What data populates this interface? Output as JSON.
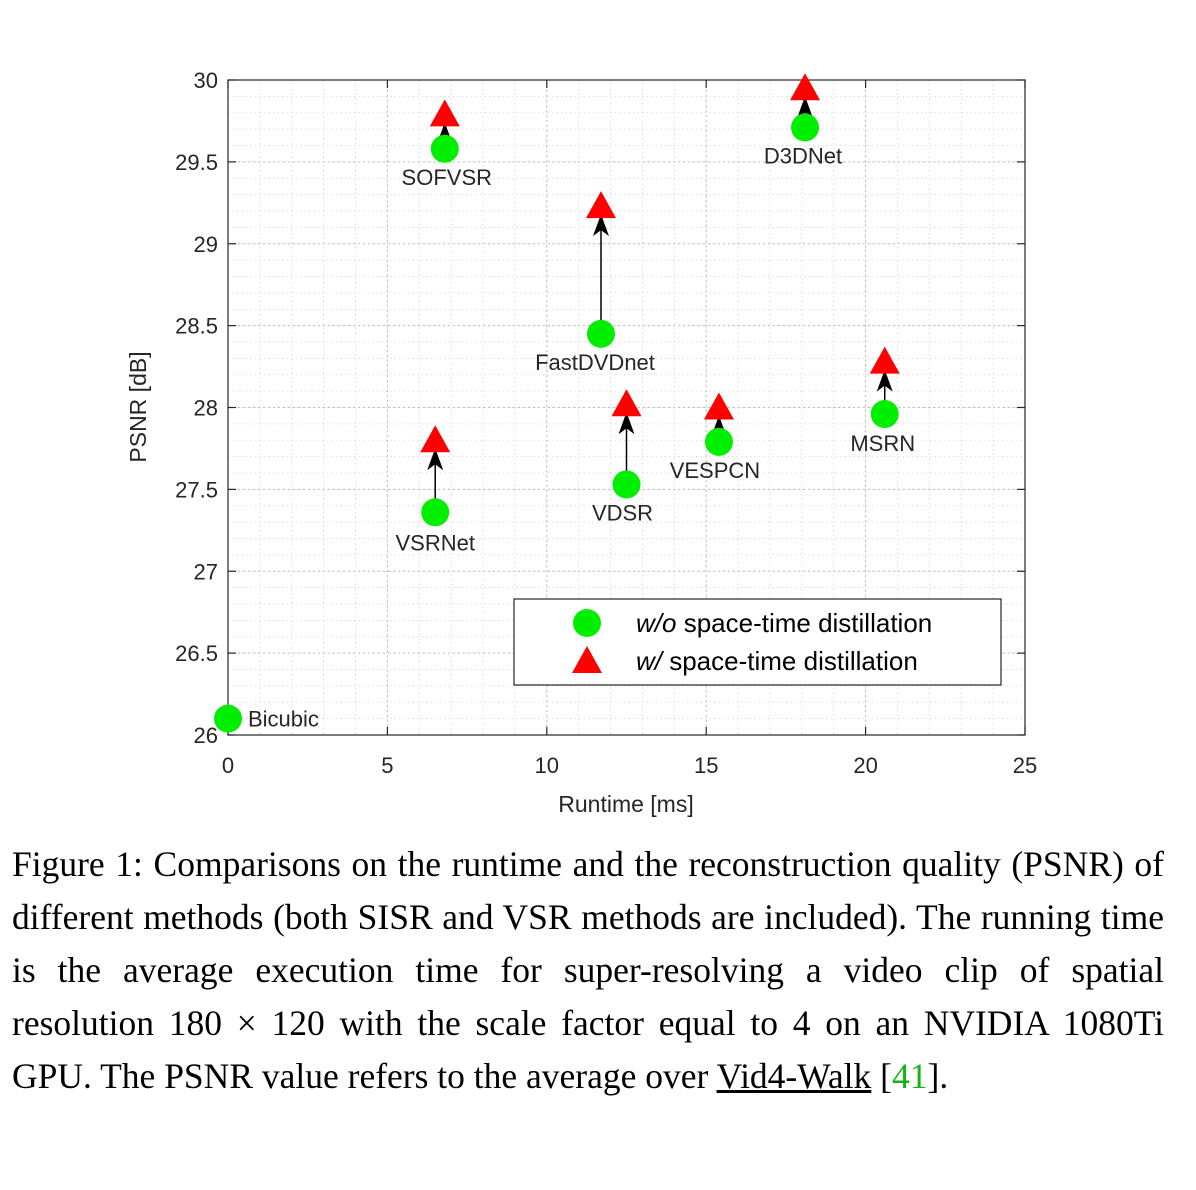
{
  "chart_data": {
    "type": "scatter",
    "xlabel": "Runtime [ms]",
    "ylabel": "PSNR [dB]",
    "xlim": [
      0,
      25
    ],
    "ylim": [
      26,
      30
    ],
    "xticks": [
      0,
      5,
      10,
      15,
      20,
      25
    ],
    "yticks": [
      26,
      26.5,
      27,
      27.5,
      28,
      28.5,
      29,
      29.5,
      30
    ],
    "grid": "major and minor, dotted",
    "legend_placement": "lower-right",
    "legend": [
      {
        "marker": "circle",
        "color": "#00ee00",
        "italic": "w/o",
        "text": "space-time distillation"
      },
      {
        "marker": "triangle",
        "color": "#ff0000",
        "italic": "w/",
        "text": "space-time distillation"
      }
    ],
    "series": [
      {
        "key": "without",
        "marker": "circle",
        "color": "#00ee00",
        "points": [
          {
            "label": "Bicubic",
            "x": 0.0,
            "y": 26.1
          },
          {
            "label": "VSRNet",
            "x": 6.5,
            "y": 27.36
          },
          {
            "label": "SOFVSR",
            "x": 6.8,
            "y": 29.58
          },
          {
            "label": "FastDVDnet",
            "x": 11.7,
            "y": 28.45
          },
          {
            "label": "VDSR",
            "x": 12.5,
            "y": 27.53
          },
          {
            "label": "VESPCN",
            "x": 15.4,
            "y": 27.79
          },
          {
            "label": "D3DNet",
            "x": 18.1,
            "y": 29.71
          },
          {
            "label": "MSRN",
            "x": 20.6,
            "y": 27.96
          }
        ]
      },
      {
        "key": "with",
        "marker": "triangle",
        "color": "#ff0000",
        "points": [
          {
            "label": "VSRNet",
            "x": 6.5,
            "y": 27.8
          },
          {
            "label": "SOFVSR",
            "x": 6.8,
            "y": 29.79
          },
          {
            "label": "FastDVDnet",
            "x": 11.7,
            "y": 29.23
          },
          {
            "label": "VDSR",
            "x": 12.5,
            "y": 28.02
          },
          {
            "label": "VESPCN",
            "x": 15.4,
            "y": 28.0
          },
          {
            "label": "D3DNet",
            "x": 18.1,
            "y": 29.95
          },
          {
            "label": "MSRN",
            "x": 20.6,
            "y": 28.28
          }
        ]
      }
    ]
  },
  "caption": {
    "prefix": "Figure 1: Comparisons on the runtime and the reconstruction quality (PSNR) of different methods (both SISR and VSR methods are included). The running time is the average execution time for super-resolving a video clip of spatial resolution 180 × 120 with the scale factor equal to 4 on an NVIDIA 1080Ti GPU. The PSNR value refers to the average over ",
    "link_text": "Vid4-Walk",
    "ref_open": " [",
    "ref_num": "41",
    "ref_close": "]."
  }
}
